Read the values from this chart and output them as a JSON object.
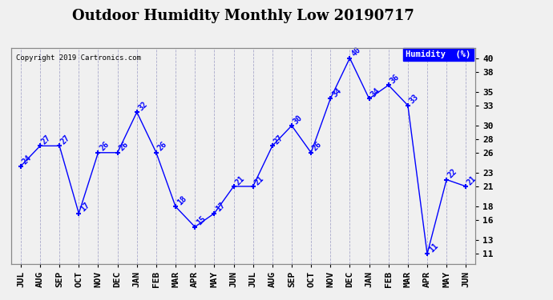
{
  "title": "Outdoor Humidity Monthly Low 20190717",
  "copyright": "Copyright 2019 Cartronics.com",
  "legend_label": "Humidity  (%)",
  "x_labels": [
    "JUL",
    "AUG",
    "SEP",
    "OCT",
    "NOV",
    "DEC",
    "JAN",
    "FEB",
    "MAR",
    "APR",
    "MAY",
    "JUN",
    "JUL",
    "AUG",
    "SEP",
    "OCT",
    "NOV",
    "DEC",
    "JAN",
    "FEB",
    "MAR",
    "APR",
    "MAY",
    "JUN"
  ],
  "y_values": [
    24,
    27,
    27,
    17,
    26,
    26,
    32,
    26,
    18,
    15,
    17,
    21,
    21,
    27,
    30,
    26,
    34,
    40,
    34,
    36,
    33,
    11,
    22,
    21
  ],
  "y_ticks": [
    11,
    13,
    16,
    18,
    21,
    23,
    26,
    28,
    30,
    33,
    35,
    38,
    40
  ],
  "ylim": [
    9.5,
    41.5
  ],
  "line_color": "blue",
  "marker": "+",
  "marker_size": 5,
  "marker_color": "blue",
  "bg_color": "#f0f0f0",
  "plot_bg_color": "#f0f0f0",
  "grid_color": "#aaaacc",
  "title_fontsize": 13,
  "tick_fontsize": 8,
  "annotation_fontsize": 7,
  "annotation_color": "blue"
}
